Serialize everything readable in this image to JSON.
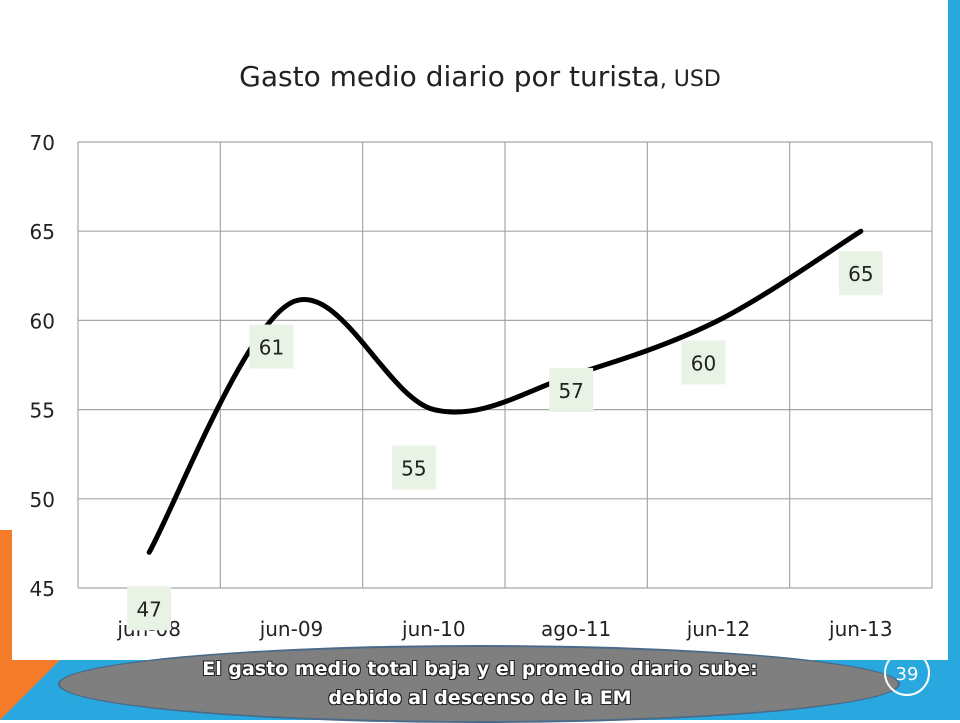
{
  "slide": {
    "page_number": "39",
    "callout": {
      "line1": "El gasto medio total baja y el promedio diario sube:",
      "line2": "debido al descenso de la EM"
    },
    "colors": {
      "blue": "#29a8df",
      "orange": "#f47b2a",
      "callout_fill": "#7f7f7f",
      "line": "#000000",
      "label_fill": "#e8f3e6"
    }
  },
  "chart_data": {
    "type": "line",
    "title": "Gasto medio diario por turista",
    "title_unit": ", USD",
    "categories": [
      "jun-08",
      "jun-09",
      "jun-10",
      "ago-11",
      "jun-12",
      "jun-13"
    ],
    "series": [
      {
        "values": [
          47,
          61,
          55,
          57,
          60,
          65
        ]
      }
    ],
    "data_labels": [
      "47",
      "61",
      "55",
      "57",
      "60",
      "65"
    ],
    "ylim": [
      45,
      70
    ],
    "yticks": [
      45,
      50,
      55,
      60,
      65,
      70
    ],
    "grid": true,
    "smooth": true,
    "legend": "none"
  }
}
